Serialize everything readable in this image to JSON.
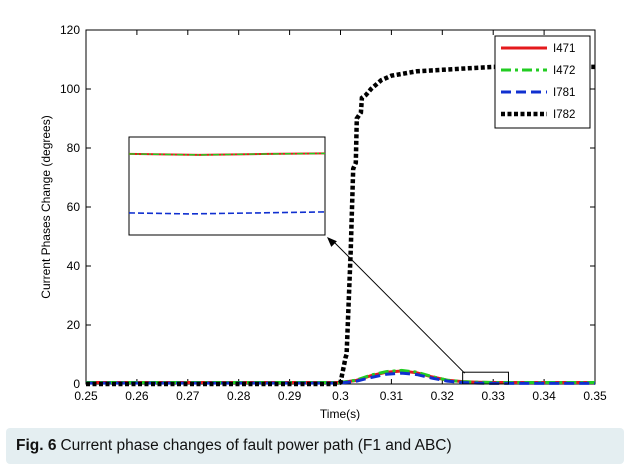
{
  "chart_data": {
    "type": "line",
    "xlabel": "Time(s)",
    "ylabel": "Current Phases Change (degrees)",
    "xlim": [
      0.25,
      0.35
    ],
    "ylim": [
      0,
      120
    ],
    "xticks": [
      0.25,
      0.26,
      0.27,
      0.28,
      0.29,
      0.3,
      0.31,
      0.32,
      0.33,
      0.34,
      0.35
    ],
    "yticks": [
      0,
      20,
      40,
      60,
      80,
      100,
      120
    ],
    "grid": false,
    "legend_position": "top-right",
    "series": [
      {
        "name": "I471",
        "color": "#e41a1c",
        "style": "solid",
        "x": [
          0.25,
          0.3,
          0.303,
          0.306,
          0.309,
          0.312,
          0.315,
          0.318,
          0.321,
          0.324,
          0.327,
          0.33,
          0.35
        ],
        "y": [
          0.5,
          0.5,
          1.2,
          2.8,
          4.0,
          4.4,
          3.8,
          2.4,
          1.3,
          0.8,
          0.6,
          0.5,
          0.5
        ]
      },
      {
        "name": "I472",
        "color": "#22cc22",
        "style": "dashdot",
        "x": [
          0.25,
          0.3,
          0.303,
          0.306,
          0.309,
          0.312,
          0.315,
          0.318,
          0.321,
          0.324,
          0.327,
          0.33,
          0.35
        ],
        "y": [
          0.5,
          0.5,
          1.3,
          3.0,
          4.2,
          4.6,
          4.0,
          2.5,
          1.3,
          0.8,
          0.6,
          0.5,
          0.5
        ]
      },
      {
        "name": "I781",
        "color": "#1030d0",
        "style": "dashed",
        "x": [
          0.25,
          0.3,
          0.303,
          0.306,
          0.309,
          0.312,
          0.315,
          0.318,
          0.321,
          0.324,
          0.327,
          0.33,
          0.35
        ],
        "y": [
          0.3,
          0.3,
          0.9,
          2.2,
          3.3,
          3.7,
          3.2,
          2.0,
          1.0,
          0.5,
          0.3,
          0.2,
          0.2
        ]
      },
      {
        "name": "I782",
        "color": "#000000",
        "style": "dotted",
        "x": [
          0.25,
          0.2995,
          0.3,
          0.301,
          0.3012,
          0.302,
          0.3025,
          0.303,
          0.3032,
          0.304,
          0.3042,
          0.305,
          0.306,
          0.308,
          0.31,
          0.315,
          0.32,
          0.325,
          0.33,
          0.34,
          0.35
        ],
        "y": [
          0,
          0,
          0.5,
          9,
          10,
          45,
          73,
          75,
          90,
          92,
          97,
          98,
          100,
          103,
          104.5,
          106,
          106.5,
          107,
          107.5,
          107.5,
          107.5
        ]
      }
    ],
    "inset": {
      "series_levels": {
        "I471": 78,
        "I472": 78,
        "I781": 58
      }
    }
  },
  "caption": {
    "label": "Fig. 6",
    "text": "Current phase changes of fault power path (F1 and ABC)"
  }
}
